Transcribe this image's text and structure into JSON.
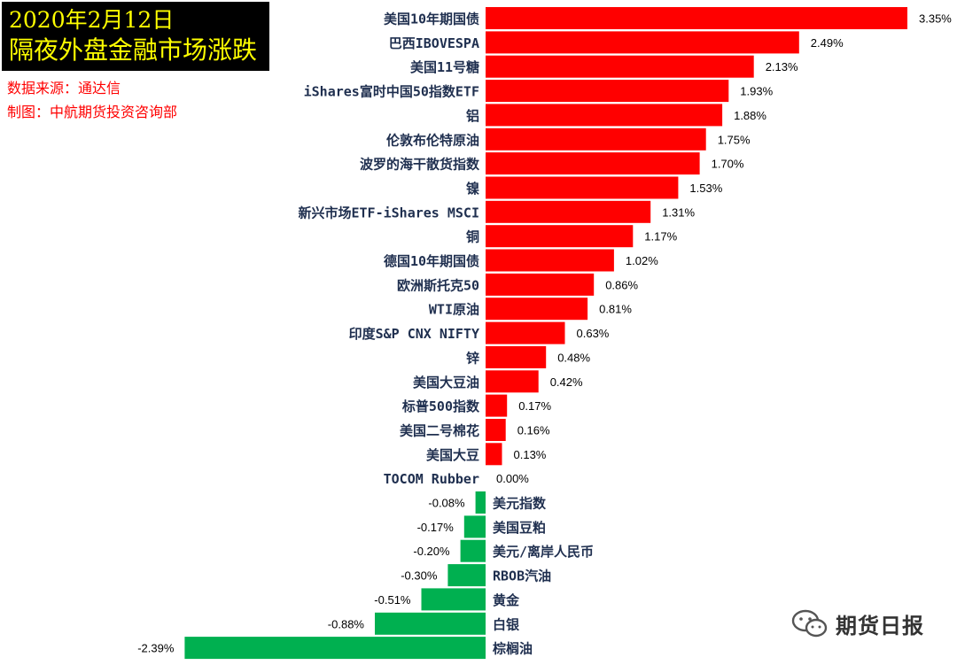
{
  "header": {
    "title_line1": "2020年2月12日",
    "title_line2": "隔夜外盘金融市场涨跌",
    "source": "数据来源：通达信",
    "made_by": "制图：中航期货投资咨询部"
  },
  "watermark": {
    "text": "期货日报",
    "icon": "wechat-icon"
  },
  "chart_data": {
    "type": "bar",
    "orientation": "horizontal",
    "title": "",
    "xlabel": "",
    "ylabel": "",
    "positive_color": "#ff0000",
    "negative_color": "#00b050",
    "value_format": "percent",
    "categories": [
      "美国10年期国债",
      "巴西IBOVESPA",
      "美国11号糖",
      "iShares富时中国50指数ETF",
      "铝",
      "伦敦布伦特原油",
      "波罗的海干散货指数",
      "镍",
      "新兴市场ETF-iShares MSCI",
      "铜",
      "德国10年期国债",
      "欧洲斯托克50",
      "WTI原油",
      "印度S&P CNX NIFTY",
      "锌",
      "美国大豆油",
      "标普500指数",
      "美国二号棉花",
      "美国大豆",
      "TOCOM Rubber",
      "美元指数",
      "美国豆粕",
      "美元/离岸人民币",
      "RBOB汽油",
      "黄金",
      "白银",
      "棕榈油"
    ],
    "values": [
      3.35,
      2.49,
      2.13,
      1.93,
      1.88,
      1.75,
      1.7,
      1.53,
      1.31,
      1.17,
      1.02,
      0.86,
      0.81,
      0.63,
      0.48,
      0.42,
      0.17,
      0.16,
      0.13,
      0.0,
      -0.08,
      -0.17,
      -0.2,
      -0.3,
      -0.51,
      -0.88,
      -2.39
    ],
    "labels": [
      "3.35%",
      "2.49%",
      "2.13%",
      "1.93%",
      "1.88%",
      "1.75%",
      "1.70%",
      "1.53%",
      "1.31%",
      "1.17%",
      "1.02%",
      "0.86%",
      "0.81%",
      "0.63%",
      "0.48%",
      "0.42%",
      "0.17%",
      "0.16%",
      "0.13%",
      "0.00%",
      "-0.08%",
      "-0.17%",
      "-0.20%",
      "-0.30%",
      "-0.51%",
      "-0.88%",
      "-2.39%"
    ]
  }
}
